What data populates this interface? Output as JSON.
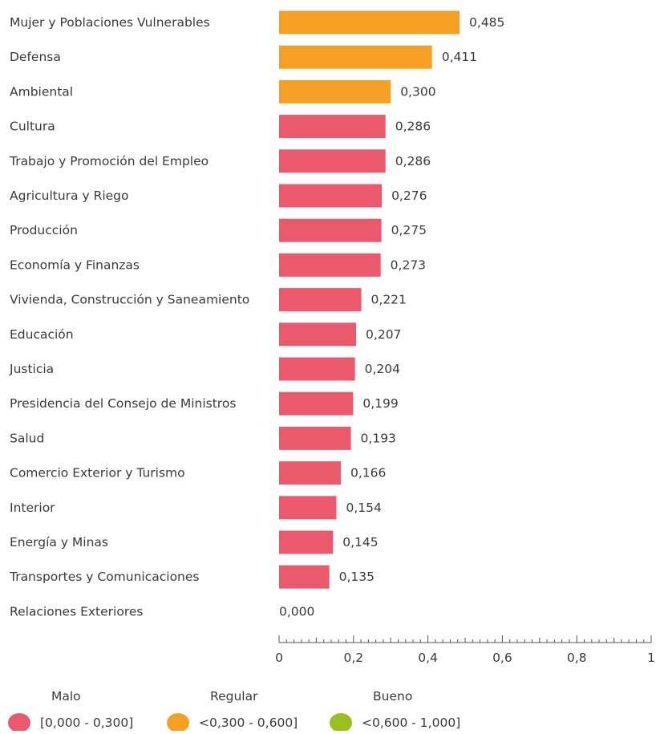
{
  "chart_data": {
    "type": "bar",
    "orientation": "horizontal",
    "categories": [
      "Mujer y Poblaciones Vulnerables",
      "Defensa",
      "Ambiental",
      "Cultura",
      "Trabajo y Promoción del Empleo",
      "Agricultura y Riego",
      "Producción",
      "Economía y Finanzas",
      "Vivienda, Construcción y Saneamiento",
      "Educación",
      "Justicia",
      "Presidencia del Consejo de Ministros",
      "Salud",
      "Comercio Exterior y Turismo",
      "Interior",
      "Energía y Minas",
      "Transportes y Comunicaciones",
      "Relaciones Exteriores"
    ],
    "values": [
      0.485,
      0.411,
      0.3,
      0.286,
      0.286,
      0.276,
      0.275,
      0.273,
      0.221,
      0.207,
      0.204,
      0.199,
      0.193,
      0.166,
      0.154,
      0.145,
      0.135,
      0.0
    ],
    "value_labels": [
      "0,485",
      "0,411",
      "0,300",
      "0,286",
      "0,286",
      "0,276",
      "0,275",
      "0,273",
      "0,221",
      "0,207",
      "0,204",
      "0,199",
      "0,193",
      "0,166",
      "0,154",
      "0,145",
      "0,135",
      "0,000"
    ],
    "bar_colors": [
      "#f5a025",
      "#f5a025",
      "#f5a025",
      "#ea5a6c",
      "#ea5a6c",
      "#ea5a6c",
      "#ea5a6c",
      "#ea5a6c",
      "#ea5a6c",
      "#ea5a6c",
      "#ea5a6c",
      "#ea5a6c",
      "#ea5a6c",
      "#ea5a6c",
      "#ea5a6c",
      "#ea5a6c",
      "#ea5a6c",
      "#ea5a6c"
    ],
    "xlim": [
      0,
      1
    ],
    "x_ticks": [
      0,
      0.2,
      0.4,
      0.6,
      0.8,
      1
    ],
    "x_tick_labels": [
      "0",
      "0,2",
      "0,4",
      "0,6",
      "0,8",
      "1"
    ],
    "x_minor_tick_step": 0.02,
    "grid": false,
    "title": "",
    "xlabel": "",
    "ylabel": "",
    "legend": {
      "position": "bottom",
      "items": [
        {
          "name": "Malo",
          "range": "[0,000 - 0,300]",
          "color": "#ea5a6c"
        },
        {
          "name": "Regular",
          "range": "<0,300 - 0,600]",
          "color": "#f5a025"
        },
        {
          "name": "Bueno",
          "range": "<0,600 - 1,000]",
          "color": "#9bbf1f"
        }
      ]
    }
  }
}
